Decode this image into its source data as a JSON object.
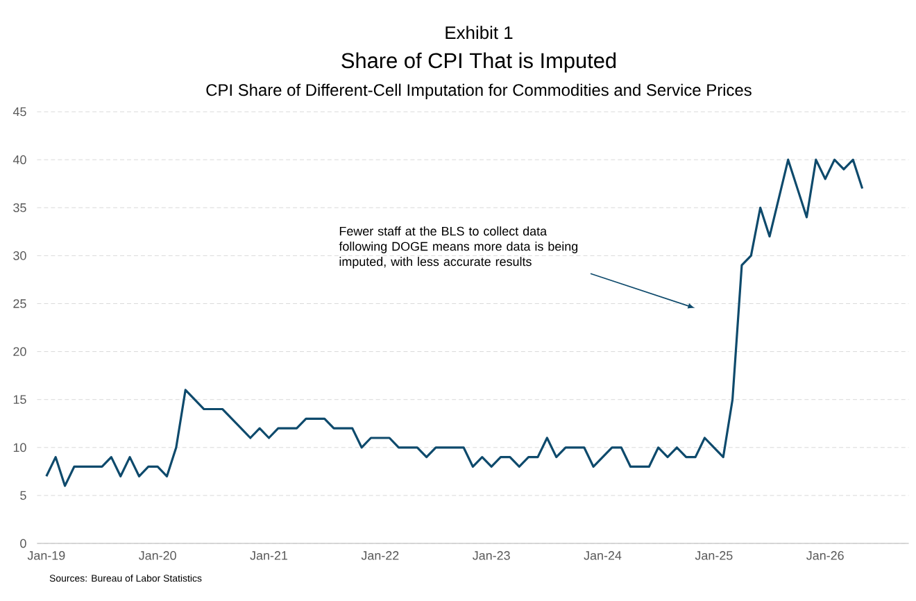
{
  "chart_data": {
    "type": "line",
    "title": "Share of CPI That is Imputed",
    "subtitle": "CPI Share of Different-Cell Imputation for Commodities and Service Prices",
    "annotations": [
      "Exhibit 1",
      "Fewer staff at the BLS to collect data following DOGE means more data is being imputed, with less accurate results",
      "Sources: Bureau of Labor Statistics"
    ],
    "x": [
      "2019-01",
      "2019-02",
      "2019-03",
      "2019-04",
      "2019-05",
      "2019-06",
      "2019-07",
      "2019-08",
      "2019-09",
      "2019-10",
      "2019-11",
      "2019-12",
      "2020-01",
      "2020-02",
      "2020-03",
      "2020-04",
      "2020-05",
      "2020-06",
      "2020-07",
      "2020-08",
      "2020-09",
      "2020-10",
      "2020-11",
      "2020-12",
      "2021-01",
      "2021-02",
      "2021-03",
      "2021-04",
      "2021-05",
      "2021-06",
      "2021-07",
      "2021-08",
      "2021-09",
      "2021-10",
      "2021-11",
      "2021-12",
      "2022-01",
      "2022-02",
      "2022-03",
      "2022-04",
      "2022-05",
      "2022-06",
      "2022-07",
      "2022-08",
      "2022-09",
      "2022-10",
      "2022-11",
      "2022-12",
      "2023-01",
      "2023-02",
      "2023-03",
      "2023-04",
      "2023-05",
      "2023-06",
      "2023-07",
      "2023-08",
      "2023-09",
      "2023-10",
      "2023-11",
      "2023-12",
      "2024-01",
      "2024-02",
      "2024-03",
      "2024-04",
      "2024-05",
      "2024-06",
      "2024-07",
      "2024-08",
      "2024-09",
      "2024-10",
      "2024-11",
      "2024-12",
      "2025-01",
      "2025-02",
      "2025-03",
      "2025-04",
      "2025-05",
      "2025-06",
      "2025-07",
      "2025-08",
      "2025-09",
      "2025-10",
      "2025-11",
      "2025-12",
      "2026-01",
      "2026-02",
      "2026-03",
      "2026-04",
      "2026-05"
    ],
    "series": [
      {
        "color": "#0e4a6c",
        "values": [
          7,
          9,
          6,
          8,
          8,
          8,
          8,
          9,
          7,
          9,
          7,
          8,
          8,
          7,
          10,
          16,
          15,
          14,
          14,
          14,
          13,
          12,
          11,
          12,
          11,
          12,
          12,
          12,
          13,
          13,
          13,
          12,
          12,
          12,
          10,
          11,
          11,
          11,
          10,
          10,
          10,
          9,
          10,
          10,
          10,
          10,
          8,
          9,
          8,
          9,
          9,
          8,
          9,
          9,
          11,
          9,
          10,
          10,
          10,
          8,
          9,
          10,
          10,
          8,
          8,
          8,
          10,
          9,
          10,
          9,
          9,
          11,
          10,
          9,
          15,
          29,
          30,
          35,
          32,
          36,
          40,
          37,
          34,
          40,
          38,
          40,
          39,
          40,
          37
        ]
      }
    ],
    "xlim": [
      "2018-12",
      "2026-10"
    ],
    "xticks": [
      {
        "value": "2019-01",
        "label": "Jan-19"
      },
      {
        "value": "2020-01",
        "label": "Jan-20"
      },
      {
        "value": "2021-01",
        "label": "Jan-21"
      },
      {
        "value": "2022-01",
        "label": "Jan-22"
      },
      {
        "value": "2023-01",
        "label": "Jan-23"
      },
      {
        "value": "2024-01",
        "label": "Jan-24"
      },
      {
        "value": "2025-01",
        "label": "Jan-25"
      },
      {
        "value": "2026-01",
        "label": "Jan-26"
      }
    ],
    "ylim": [
      0,
      45
    ],
    "yticks": [
      0,
      5,
      10,
      15,
      20,
      25,
      30,
      35,
      40,
      45
    ],
    "grid": "y",
    "marker": "none"
  }
}
